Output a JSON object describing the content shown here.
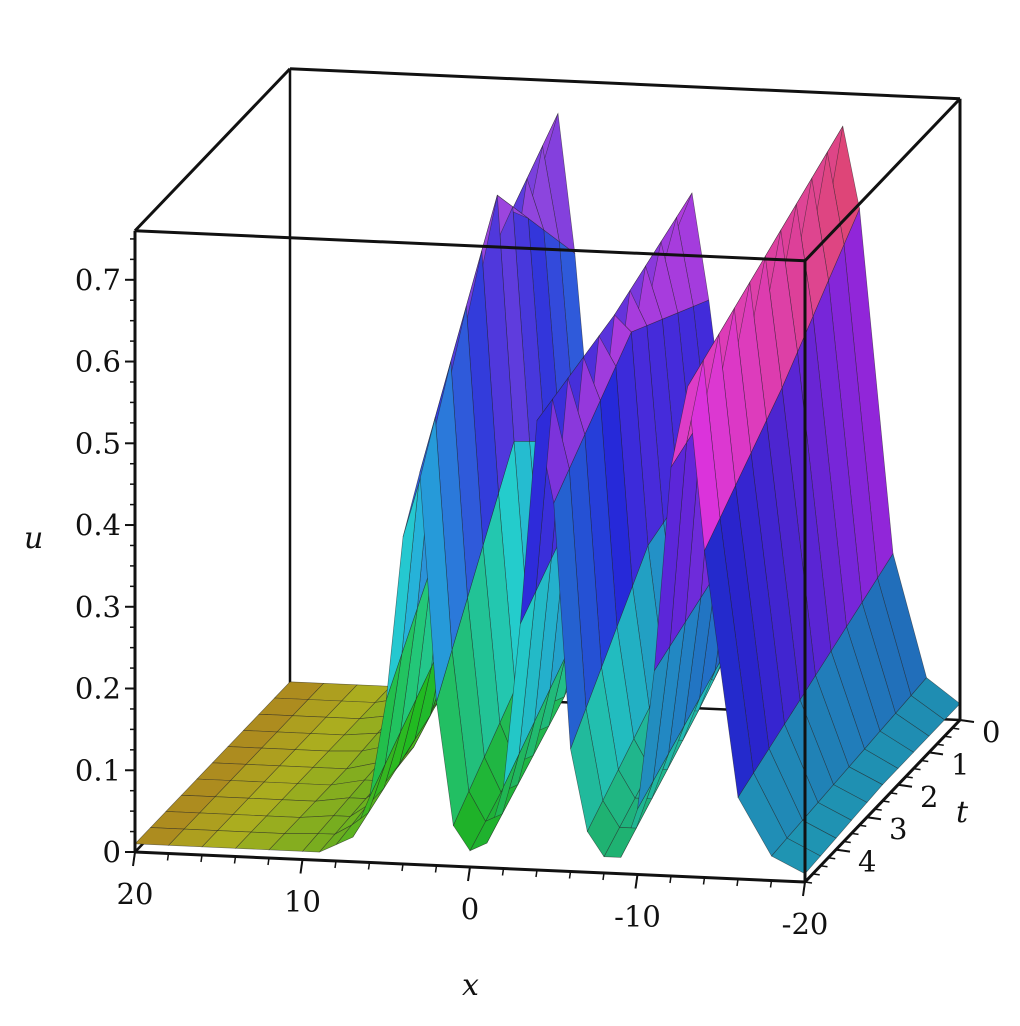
{
  "chart_data": {
    "type": "surface3d",
    "title": "",
    "axes": {
      "x": {
        "label": "x",
        "range": [
          -20,
          20
        ],
        "ticks": [
          20,
          10,
          0,
          -10,
          -20
        ],
        "tick_labels": [
          "20",
          "10",
          "0",
          "-10",
          "-20"
        ]
      },
      "t": {
        "label": "t",
        "range": [
          0,
          5
        ],
        "ticks": [
          0,
          1,
          2,
          3,
          4
        ],
        "tick_labels": [
          "0",
          "1",
          "2",
          "3",
          "4"
        ]
      },
      "u": {
        "label": "u",
        "range": [
          0,
          0.76
        ],
        "ticks": [
          0,
          0.1,
          0.2,
          0.3,
          0.4,
          0.5,
          0.6,
          0.7
        ],
        "tick_labels": [
          "0",
          "0.1",
          "0.2",
          "0.3",
          "0.4",
          "0.5",
          "0.6",
          "0.7"
        ]
      }
    },
    "x": [
      -20,
      -18,
      -16,
      -14,
      -13,
      -12,
      -11,
      -10,
      -9,
      -8,
      -7,
      -6,
      -5,
      -4,
      -3,
      -2,
      -1,
      0,
      1,
      2,
      3,
      4,
      5,
      6,
      7,
      8,
      9,
      10,
      12,
      14,
      16,
      18,
      20
    ],
    "series": [
      {
        "t": 0,
        "u": [
          0.02,
          0.05,
          0.2,
          0.62,
          0.72,
          0.6,
          0.35,
          0.22,
          0.19,
          0.2,
          0.24,
          0.34,
          0.5,
          0.63,
          0.58,
          0.4,
          0.25,
          0.18,
          0.2,
          0.32,
          0.55,
          0.72,
          0.65,
          0.45,
          0.25,
          0.12,
          0.06,
          0.03,
          0.02,
          0.01,
          0.01,
          0.01,
          0.01
        ]
      },
      {
        "t": 2.5,
        "u": [
          0.02,
          0.04,
          0.15,
          0.5,
          0.66,
          0.55,
          0.3,
          0.15,
          0.1,
          0.1,
          0.14,
          0.3,
          0.56,
          0.58,
          0.4,
          0.2,
          0.11,
          0.1,
          0.16,
          0.42,
          0.72,
          0.62,
          0.38,
          0.18,
          0.08,
          0.04,
          0.02,
          0.02,
          0.01,
          0.01,
          0.01,
          0.01,
          0.01
        ]
      },
      {
        "t": 5,
        "u": [
          0.01,
          0.03,
          0.1,
          0.4,
          0.6,
          0.5,
          0.25,
          0.08,
          0.02,
          0.02,
          0.05,
          0.15,
          0.45,
          0.55,
          0.3,
          0.1,
          0.03,
          0.02,
          0.05,
          0.2,
          0.48,
          0.4,
          0.2,
          0.08,
          0.03,
          0.02,
          0.01,
          0.01,
          0.01,
          0.01,
          0.01,
          0.01,
          0.01
        ]
      }
    ],
    "colormap": "hue gradient (yellow / orange / magenta / green / cyan)",
    "box": true
  }
}
